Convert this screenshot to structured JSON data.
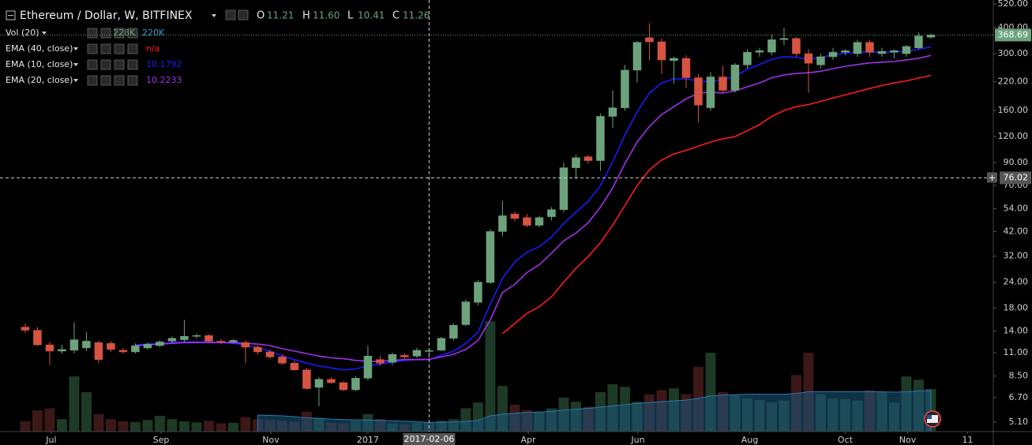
{
  "chart_data": {
    "type": "candlestick",
    "title": "Ethereum / Dollar, W, BITFINEX",
    "ohlc_labels": [
      "O",
      "H",
      "L",
      "C"
    ],
    "readout": [
      "11.21",
      "11.60",
      "10.41",
      "11.26"
    ],
    "missing_label": "n/a",
    "log_scale": true,
    "grid": false,
    "up_color": "#6ca37d",
    "down_color": "#d75442",
    "open": [
      14.6,
      14.1,
      12.0,
      11.2,
      11.3,
      11.6,
      12.3,
      12.2,
      11.3,
      11.1,
      11.6,
      11.9,
      12.5,
      12.7,
      13.2,
      13.3,
      12.5,
      12.4,
      12.3,
      11.7,
      11.1,
      10.5,
      9.8,
      9.1,
      7.5,
      8.2,
      7.9,
      7.3,
      8.3,
      10.2,
      9.9,
      10.7,
      10.6,
      11.21,
      11.3,
      12.9,
      15.0,
      19.2,
      23.9,
      42.0,
      51.0,
      49.0,
      45.0,
      49.5,
      53.5,
      85.0,
      96.0,
      92.0,
      150,
      165,
      250,
      358,
      342,
      278,
      285,
      230,
      165,
      232,
      200,
      265,
      305,
      305,
      350,
      355,
      300,
      265,
      290,
      305,
      300,
      340,
      300,
      305,
      300,
      320,
      360
    ],
    "high": [
      15.2,
      14.6,
      12.4,
      12.0,
      15.4,
      13.8,
      12.6,
      12.5,
      11.6,
      12.2,
      12.3,
      12.6,
      13.2,
      15.8,
      13.6,
      13.5,
      12.8,
      12.8,
      12.6,
      11.9,
      11.4,
      10.8,
      10.1,
      9.3,
      8.4,
      8.4,
      8.0,
      8.5,
      11.9,
      10.6,
      11.0,
      10.9,
      11.6,
      11.6,
      13.1,
      15.2,
      19.8,
      24.6,
      43.0,
      59.0,
      52.5,
      51.0,
      50.0,
      55.0,
      90.0,
      98.0,
      98.0,
      155,
      200,
      265,
      345,
      420,
      355,
      290,
      295,
      240,
      245,
      262,
      270,
      315,
      320,
      370,
      400,
      360,
      315,
      300,
      320,
      315,
      350,
      350,
      320,
      315,
      330,
      380,
      375
    ],
    "low": [
      13.7,
      11.9,
      9.6,
      10.9,
      10.9,
      11.2,
      9.8,
      11.1,
      10.9,
      10.9,
      11.4,
      11.7,
      12.2,
      12.4,
      12.9,
      12.3,
      12.1,
      12.2,
      9.8,
      10.8,
      10.3,
      9.6,
      9.0,
      7.3,
      6.1,
      7.8,
      7.2,
      7.2,
      8.1,
      9.5,
      9.6,
      10.3,
      10.4,
      10.41,
      11.2,
      12.6,
      14.8,
      18.6,
      23.5,
      40.0,
      47.0,
      44.0,
      44.0,
      47.5,
      52.0,
      75.0,
      89.0,
      82.0,
      132,
      160,
      218,
      280,
      240,
      215,
      205,
      140,
      160,
      195,
      195,
      255,
      290,
      295,
      330,
      290,
      195,
      255,
      280,
      295,
      290,
      290,
      290,
      285,
      290,
      315,
      355
    ],
    "close": [
      14.1,
      12.0,
      11.2,
      11.4,
      12.7,
      12.5,
      10.2,
      11.4,
      11.1,
      11.9,
      12.1,
      12.4,
      12.9,
      13.2,
      13.3,
      12.5,
      12.4,
      12.6,
      11.7,
      11.1,
      10.5,
      9.8,
      9.1,
      7.4,
      8.2,
      7.9,
      7.3,
      8.3,
      10.6,
      9.8,
      10.8,
      10.5,
      11.3,
      11.26,
      12.9,
      14.9,
      19.3,
      24.0,
      42.0,
      50.0,
      48.5,
      45.0,
      49.0,
      53.5,
      85.0,
      95.0,
      92.0,
      150,
      165,
      250,
      340,
      342,
      280,
      285,
      230,
      170,
      232,
      200,
      265,
      305,
      310,
      350,
      355,
      300,
      270,
      290,
      305,
      310,
      340,
      305,
      308,
      310,
      325,
      365,
      368.69
    ],
    "series": [
      {
        "name": "EMA (40, close)",
        "color": "#ff1a1a",
        "values": [
          null,
          null,
          null,
          null,
          null,
          null,
          null,
          null,
          null,
          null,
          null,
          null,
          null,
          null,
          null,
          null,
          null,
          null,
          null,
          null,
          null,
          null,
          null,
          null,
          null,
          null,
          null,
          null,
          null,
          null,
          null,
          null,
          null,
          null,
          null,
          null,
          null,
          null,
          null,
          13.6,
          15.2,
          17.0,
          18.3,
          20.4,
          24.0,
          28.0,
          31.8,
          37.2,
          45.1,
          56.0,
          69.8,
          83.1,
          92.5,
          99,
          103,
          108,
          113,
          117,
          120,
          128,
          137,
          150,
          160,
          167,
          171,
          177,
          184,
          190,
          197,
          204,
          211,
          217,
          222,
          229,
          236
        ]
      },
      {
        "name": "EMA (10, close)",
        "color": "#1a1aff",
        "values": [
          null,
          null,
          null,
          null,
          null,
          null,
          null,
          null,
          null,
          12.0,
          12.1,
          12.2,
          12.3,
          12.4,
          12.4,
          12.4,
          12.3,
          12.2,
          12.0,
          11.6,
          11.2,
          10.6,
          10.2,
          9.8,
          9.5,
          9.3,
          9.1,
          9.2,
          9.5,
          9.7,
          9.9,
          10.1,
          10.2,
          10.1792,
          10.7,
          11.2,
          12.2,
          13.8,
          18.8,
          25.0,
          30.0,
          33.4,
          35.5,
          39.5,
          45.9,
          52.0,
          58.6,
          69.8,
          90.7,
          122,
          158,
          194,
          217,
          227,
          227,
          222,
          220,
          225,
          233,
          253,
          266,
          282,
          290,
          288,
          282,
          288,
          296,
          302,
          305,
          305,
          305,
          305,
          308,
          315,
          323
        ]
      },
      {
        "name": "EMA (20, close)",
        "color": "#a030e8",
        "values": [
          null,
          null,
          null,
          null,
          null,
          null,
          null,
          null,
          null,
          11.9,
          12.0,
          12.1,
          12.2,
          12.3,
          12.3,
          12.3,
          12.3,
          12.3,
          12.2,
          12.1,
          11.9,
          11.5,
          11.2,
          10.9,
          10.6,
          10.4,
          10.3,
          10.1,
          10.0,
          10.0,
          10.1,
          10.2,
          10.2,
          10.2233,
          10.5,
          10.8,
          11.4,
          12.6,
          15.8,
          21.4,
          23.4,
          26.7,
          29.1,
          33.0,
          37.9,
          41.3,
          46.3,
          55.0,
          68.0,
          89,
          113,
          134,
          153,
          167,
          182,
          194,
          196,
          194,
          199,
          208,
          217,
          230,
          237,
          241,
          243,
          247,
          254,
          261,
          266,
          271,
          273,
          275,
          280,
          285,
          294
        ]
      }
    ],
    "volume": {
      "name": "Vol (20)",
      "readout": [
        "228K",
        "220K"
      ],
      "vlim": [
        0,
        10400000
      ],
      "up_color": "#1d3a26",
      "down_color": "#3d1818",
      "ma_color": "#1b5a80",
      "values": [
        250000,
        510000,
        560000,
        300000,
        1330000,
        950000,
        420000,
        300000,
        250000,
        230000,
        280000,
        380000,
        300000,
        250000,
        220000,
        260000,
        200000,
        210000,
        350000,
        300000,
        280000,
        260000,
        240000,
        480000,
        330000,
        220000,
        200000,
        260000,
        420000,
        300000,
        200000,
        180000,
        210000,
        228000,
        260000,
        300000,
        560000,
        700000,
        2660000,
        1100000,
        650000,
        520000,
        480000,
        560000,
        820000,
        720000,
        600000,
        950000,
        1140000,
        1080000,
        720000,
        900000,
        1000000,
        1040000,
        900000,
        1560000,
        1900000,
        950000,
        880000,
        800000,
        760000,
        700000,
        750000,
        1360000,
        1900000,
        900000,
        800000,
        780000,
        750000,
        1000000,
        950000,
        700000,
        1330000,
        1250000,
        1030000
      ],
      "ma": [
        null,
        null,
        null,
        null,
        null,
        null,
        null,
        null,
        null,
        null,
        null,
        null,
        null,
        null,
        null,
        null,
        null,
        null,
        null,
        400000,
        390000,
        380000,
        360000,
        330000,
        320000,
        300000,
        290000,
        285000,
        280000,
        270000,
        260000,
        250000,
        240000,
        220000,
        225000,
        230000,
        250000,
        270000,
        380000,
        420000,
        440000,
        460000,
        470000,
        490000,
        520000,
        540000,
        560000,
        590000,
        620000,
        650000,
        680000,
        700000,
        720000,
        740000,
        760000,
        800000,
        860000,
        880000,
        890000,
        900000,
        900000,
        900000,
        900000,
        920000,
        960000,
        960000,
        960000,
        960000,
        960000,
        960000,
        960000,
        950000,
        960000,
        980000,
        990000
      ]
    },
    "ylim": [
      4.6,
      543
    ],
    "yticks": [
      {
        "value": 520,
        "label": "520.00"
      },
      {
        "value": 400,
        "label": "400.00"
      },
      {
        "value": 300,
        "label": "300.00"
      },
      {
        "value": 220,
        "label": "220.00"
      },
      {
        "value": 160,
        "label": "160.00"
      },
      {
        "value": 120,
        "label": "120.00"
      },
      {
        "value": 90,
        "label": "90.00"
      },
      {
        "value": 70,
        "label": "70.00"
      },
      {
        "value": 54,
        "label": "54.00"
      },
      {
        "value": 42,
        "label": "42.00"
      },
      {
        "value": 32,
        "label": "32.00"
      },
      {
        "value": 24,
        "label": "24.00"
      },
      {
        "value": 18,
        "label": "18.00"
      },
      {
        "value": 14,
        "label": "14.00"
      },
      {
        "value": 11,
        "label": "11.00"
      },
      {
        "value": 8.5,
        "label": "8.50"
      },
      {
        "value": 6.7,
        "label": "6.70"
      },
      {
        "value": 5.1,
        "label": "5.10"
      }
    ],
    "xlim": [
      -2.06,
      79.1
    ],
    "xticks": [
      {
        "value": 2.13,
        "label": "Jul"
      },
      {
        "value": 11.1,
        "label": "Sep"
      },
      {
        "value": 20.07,
        "label": "Nov"
      },
      {
        "value": 28.0,
        "label": "2017"
      },
      {
        "value": 41.1,
        "label": "Apr"
      },
      {
        "value": 50.07,
        "label": "Jun"
      },
      {
        "value": 59.2,
        "label": "Aug"
      },
      {
        "value": 67.0,
        "label": "Oct"
      },
      {
        "value": 72.1,
        "label": "Nov"
      },
      {
        "value": 77.0,
        "label": "11"
      }
    ],
    "crosshair": {
      "x": 33,
      "label": "2017-02-06",
      "price": 76.02
    }
  }
}
